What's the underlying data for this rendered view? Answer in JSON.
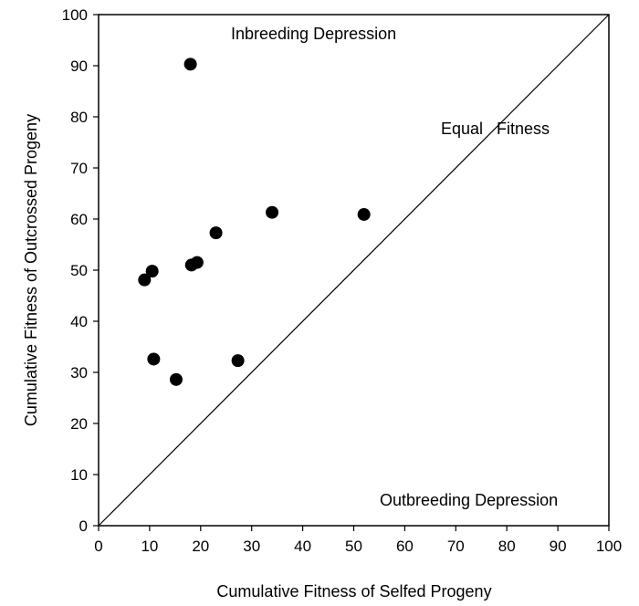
{
  "chart_data": {
    "type": "scatter",
    "xlabel": "Cumulative Fitness of Selfed Progeny",
    "ylabel": "Cumulative Fitness of Outcrossed Progeny",
    "xlim": [
      0,
      100
    ],
    "ylim": [
      0,
      100
    ],
    "xticks": [
      "0",
      "10",
      "20",
      "30",
      "40",
      "50",
      "60",
      "70",
      "80",
      "90",
      "100"
    ],
    "yticks": [
      "0",
      "10",
      "20",
      "30",
      "40",
      "50",
      "60",
      "70",
      "80",
      "90",
      "100"
    ],
    "grid": false,
    "reference_line": {
      "from": [
        0,
        0
      ],
      "to": [
        100,
        100
      ]
    },
    "annotations": {
      "inbreeding": "Inbreeding Depression",
      "equal": "Equal   Fitness",
      "outbreeding": "Outbreeding Depression"
    },
    "points": [
      {
        "x": 18,
        "y": 90.3
      },
      {
        "x": 9,
        "y": 48.1
      },
      {
        "x": 10.5,
        "y": 49.8
      },
      {
        "x": 18.2,
        "y": 51.0
      },
      {
        "x": 19.3,
        "y": 51.5
      },
      {
        "x": 23,
        "y": 57.3
      },
      {
        "x": 34,
        "y": 61.3
      },
      {
        "x": 52,
        "y": 60.9
      },
      {
        "x": 10.8,
        "y": 32.6
      },
      {
        "x": 15.2,
        "y": 28.6
      },
      {
        "x": 27.3,
        "y": 32.3
      }
    ],
    "marker_color": "#000000",
    "line_color": "#000000"
  }
}
